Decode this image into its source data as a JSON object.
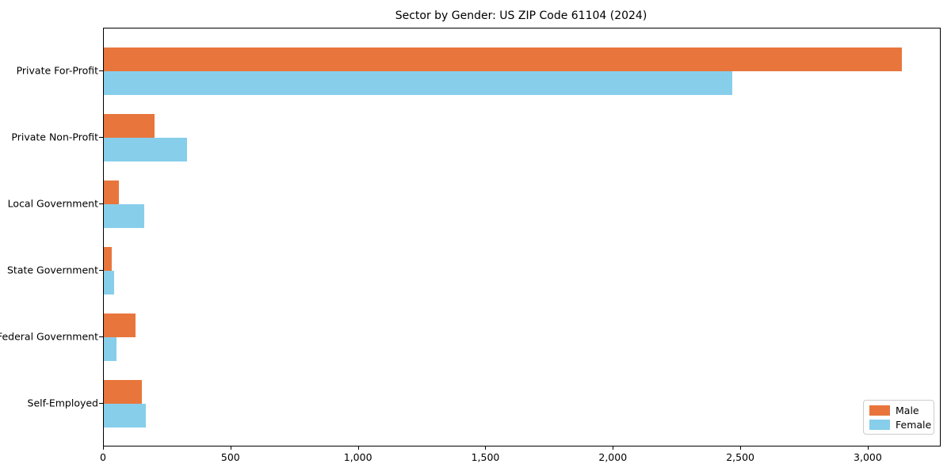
{
  "title": "Sector by Gender: US ZIP Code 61104 (2024)",
  "colors": {
    "male": "#e8763c",
    "female": "#87ceeb",
    "axis": "#000000",
    "legend_border": "#cccccc",
    "background": "#ffffff"
  },
  "chart_data": {
    "type": "bar",
    "orientation": "horizontal",
    "title": "Sector by Gender: US ZIP Code 61104 (2024)",
    "xlabel": "",
    "ylabel": "",
    "categories": [
      "Private For-Profit",
      "Private Non-Profit",
      "Local Government",
      "State Government",
      "Federal Government",
      "Self-Employed"
    ],
    "series": [
      {
        "name": "Male",
        "color_key": "male",
        "values": [
          3130,
          200,
          60,
          30,
          125,
          150
        ]
      },
      {
        "name": "Female",
        "color_key": "female",
        "values": [
          2465,
          325,
          160,
          40,
          50,
          165
        ]
      }
    ],
    "xlim": [
      0,
      3280
    ],
    "xticks": [
      {
        "value": 0,
        "label": "0"
      },
      {
        "value": 500,
        "label": "500"
      },
      {
        "value": 1000,
        "label": "1,000"
      },
      {
        "value": 1500,
        "label": "1,500"
      },
      {
        "value": 2000,
        "label": "2,000"
      },
      {
        "value": 2500,
        "label": "2,500"
      },
      {
        "value": 3000,
        "label": "3,000"
      }
    ],
    "grid": false,
    "legend_position": "lower right"
  }
}
